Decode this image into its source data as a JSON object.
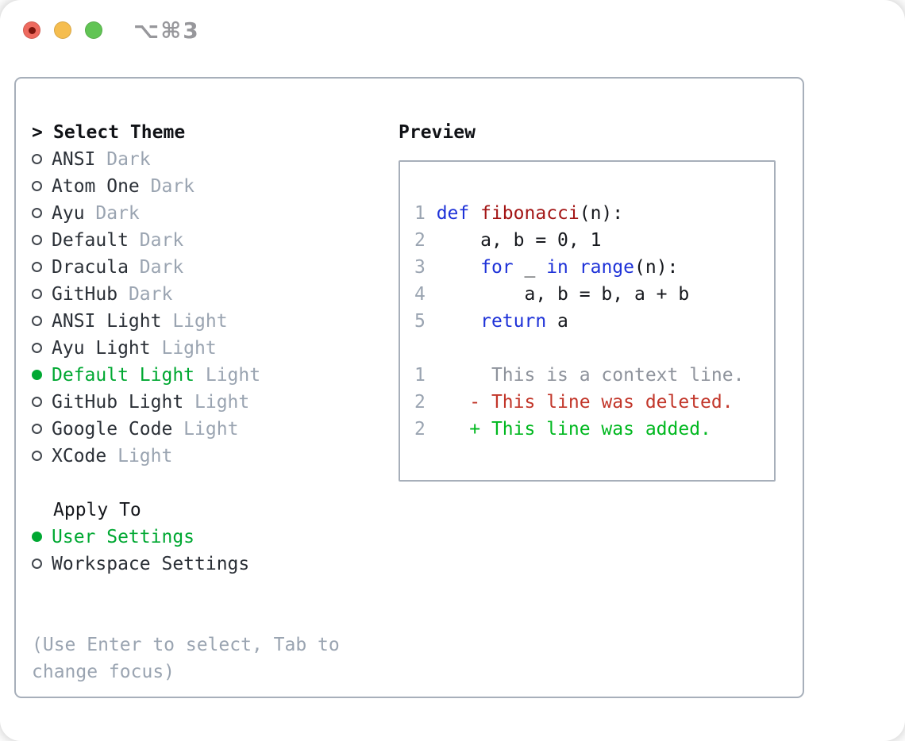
{
  "titlebar": {
    "shortcut": "⌥⌘3",
    "buttons": [
      "close",
      "minimize",
      "zoom"
    ]
  },
  "theme_list": {
    "prompt": ">",
    "header": "Select Theme",
    "items": [
      {
        "name": "ANSI",
        "tag": "Dark",
        "selected": false
      },
      {
        "name": "Atom One",
        "tag": "Dark",
        "selected": false
      },
      {
        "name": "Ayu",
        "tag": "Dark",
        "selected": false
      },
      {
        "name": "Default",
        "tag": "Dark",
        "selected": false
      },
      {
        "name": "Dracula",
        "tag": "Dark",
        "selected": false
      },
      {
        "name": "GitHub",
        "tag": "Dark",
        "selected": false
      },
      {
        "name": "ANSI Light",
        "tag": "Light",
        "selected": false
      },
      {
        "name": "Ayu Light",
        "tag": "Light",
        "selected": false
      },
      {
        "name": "Default Light",
        "tag": "Light",
        "selected": true
      },
      {
        "name": "GitHub Light",
        "tag": "Light",
        "selected": false
      },
      {
        "name": "Google Code",
        "tag": "Light",
        "selected": false
      },
      {
        "name": "XCode",
        "tag": "Light",
        "selected": false
      }
    ]
  },
  "apply_to": {
    "header": "Apply To",
    "options": [
      {
        "label": "User Settings",
        "selected": true
      },
      {
        "label": "Workspace Settings",
        "selected": false
      }
    ]
  },
  "help_text": "(Use Enter to select, Tab to change focus)",
  "preview": {
    "header": "Preview",
    "lines": [
      {
        "kind": "code",
        "segments": [
          {
            "t": "1 ",
            "c": "num"
          },
          {
            "t": "def",
            "c": "kw"
          },
          {
            "t": " ",
            "c": "pl"
          },
          {
            "t": "fibonacci",
            "c": "fn"
          },
          {
            "t": "(n):",
            "c": "pl"
          }
        ]
      },
      {
        "kind": "code",
        "segments": [
          {
            "t": "2 ",
            "c": "num"
          },
          {
            "t": "    a, b = 0, 1",
            "c": "pl"
          }
        ]
      },
      {
        "kind": "code",
        "segments": [
          {
            "t": "3 ",
            "c": "num"
          },
          {
            "t": "    ",
            "c": "pl"
          },
          {
            "t": "for",
            "c": "kw"
          },
          {
            "t": " _ ",
            "c": "pl"
          },
          {
            "t": "in",
            "c": "kw"
          },
          {
            "t": " ",
            "c": "pl"
          },
          {
            "t": "range",
            "c": "kw"
          },
          {
            "t": "(n):",
            "c": "pl"
          }
        ]
      },
      {
        "kind": "code",
        "segments": [
          {
            "t": "4 ",
            "c": "num"
          },
          {
            "t": "        a, b = b, a + b",
            "c": "pl"
          }
        ]
      },
      {
        "kind": "code",
        "segments": [
          {
            "t": "5 ",
            "c": "num"
          },
          {
            "t": "    ",
            "c": "pl"
          },
          {
            "t": "return",
            "c": "kw"
          },
          {
            "t": " a",
            "c": "pl"
          }
        ]
      },
      {
        "kind": "blank",
        "segments": []
      },
      {
        "kind": "diff-context",
        "segments": [
          {
            "t": "1",
            "c": "num"
          },
          {
            "t": "      ",
            "c": "pl"
          },
          {
            "t": "This is a context line.",
            "c": "ctx"
          }
        ]
      },
      {
        "kind": "diff-deleted",
        "segments": [
          {
            "t": "2",
            "c": "num"
          },
          {
            "t": "    ",
            "c": "pl"
          },
          {
            "t": "- ",
            "c": "del"
          },
          {
            "t": "This line was deleted.",
            "c": "del"
          }
        ]
      },
      {
        "kind": "diff-added",
        "segments": [
          {
            "t": "2",
            "c": "num"
          },
          {
            "t": "    ",
            "c": "pl"
          },
          {
            "t": "+ ",
            "c": "add"
          },
          {
            "t": "This line was added.",
            "c": "add"
          }
        ]
      }
    ]
  },
  "colors": {
    "keyword_blue": "#1e32d8",
    "function_red": "#a31515",
    "code_plain": "#16181d",
    "line_number_gray": "#9aa4b1",
    "context_gray": "#8e939c",
    "deleted_red": "#c2362a",
    "added_green": "#00b81f",
    "selection_green": "#00a832",
    "tag_gray": "#9aa4b1",
    "item_text": "#2b3037",
    "panel_border": "#a7afba",
    "help_gray": "#9aa4b1",
    "traffic_red": "#ee6a5f",
    "traffic_red_dot": "#7c150d",
    "traffic_yellow": "#f5bd4f",
    "traffic_green": "#61c454",
    "shortcut_gray": "#97979b"
  }
}
